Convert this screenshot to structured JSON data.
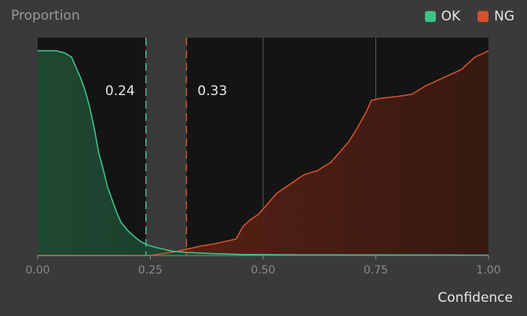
{
  "chart_data": {
    "type": "area",
    "ylabel": "Proportion",
    "xlabel": "Confidence",
    "xlim": [
      0,
      1
    ],
    "ylim": [
      0,
      1
    ],
    "x_ticks": [
      "0.00",
      "0.25",
      "0.50",
      "0.75",
      "1.00"
    ],
    "x_tick_values": [
      0,
      0.25,
      0.5,
      0.75,
      1.0
    ],
    "grid": true,
    "legend_position": "top-right",
    "legend": [
      {
        "name": "OK",
        "color": "#3fc28a"
      },
      {
        "name": "NG",
        "color": "#d4502f"
      }
    ],
    "thresholds": [
      {
        "value": 0.24,
        "label": "0.24",
        "color": "#3fc28a"
      },
      {
        "value": 0.33,
        "label": "0.33",
        "color": "#d4502f"
      }
    ],
    "series": [
      {
        "name": "OK",
        "color": "#3fc28a",
        "points": [
          [
            0.0,
            0.99
          ],
          [
            0.04,
            0.99
          ],
          [
            0.06,
            0.98
          ],
          [
            0.075,
            0.96
          ],
          [
            0.085,
            0.91
          ],
          [
            0.095,
            0.86
          ],
          [
            0.105,
            0.8
          ],
          [
            0.115,
            0.72
          ],
          [
            0.125,
            0.62
          ],
          [
            0.135,
            0.5
          ],
          [
            0.145,
            0.42
          ],
          [
            0.155,
            0.33
          ],
          [
            0.165,
            0.27
          ],
          [
            0.175,
            0.21
          ],
          [
            0.185,
            0.16
          ],
          [
            0.2,
            0.12
          ],
          [
            0.215,
            0.09
          ],
          [
            0.23,
            0.065
          ],
          [
            0.245,
            0.05
          ],
          [
            0.26,
            0.04
          ],
          [
            0.28,
            0.03
          ],
          [
            0.3,
            0.02
          ],
          [
            0.33,
            0.015
          ],
          [
            0.38,
            0.01
          ],
          [
            0.45,
            0.005
          ],
          [
            0.6,
            0.003
          ],
          [
            1.0,
            0.002
          ]
        ]
      },
      {
        "name": "NG",
        "color": "#d4502f",
        "points": [
          [
            0.0,
            0.0
          ],
          [
            0.25,
            0.0
          ],
          [
            0.28,
            0.01
          ],
          [
            0.31,
            0.02
          ],
          [
            0.33,
            0.03
          ],
          [
            0.36,
            0.045
          ],
          [
            0.39,
            0.055
          ],
          [
            0.42,
            0.07
          ],
          [
            0.44,
            0.08
          ],
          [
            0.455,
            0.14
          ],
          [
            0.47,
            0.17
          ],
          [
            0.49,
            0.2
          ],
          [
            0.51,
            0.25
          ],
          [
            0.53,
            0.3
          ],
          [
            0.55,
            0.33
          ],
          [
            0.57,
            0.36
          ],
          [
            0.59,
            0.39
          ],
          [
            0.62,
            0.41
          ],
          [
            0.65,
            0.45
          ],
          [
            0.67,
            0.5
          ],
          [
            0.69,
            0.55
          ],
          [
            0.71,
            0.62
          ],
          [
            0.73,
            0.7
          ],
          [
            0.74,
            0.75
          ],
          [
            0.76,
            0.76
          ],
          [
            0.8,
            0.77
          ],
          [
            0.83,
            0.78
          ],
          [
            0.86,
            0.82
          ],
          [
            0.89,
            0.85
          ],
          [
            0.92,
            0.88
          ],
          [
            0.94,
            0.9
          ],
          [
            0.955,
            0.93
          ],
          [
            0.97,
            0.96
          ],
          [
            0.99,
            0.98
          ],
          [
            1.0,
            0.99
          ]
        ]
      }
    ]
  }
}
